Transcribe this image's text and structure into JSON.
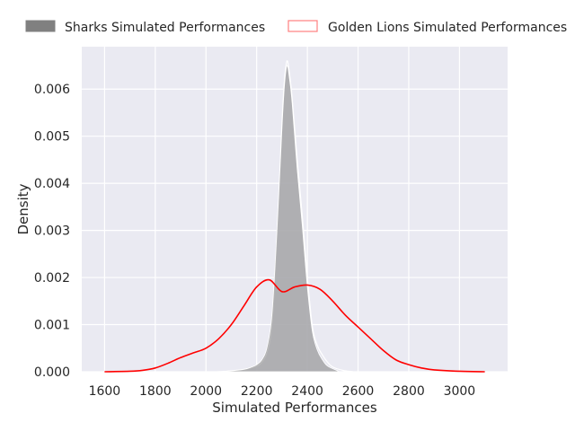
{
  "chart_data": {
    "type": "area",
    "xlabel": "Simulated Performances",
    "ylabel": "Density",
    "xlim": [
      1510,
      3190
    ],
    "ylim": [
      0,
      0.0069
    ],
    "x_ticks": [
      1600,
      1800,
      2000,
      2200,
      2400,
      2600,
      2800,
      3000
    ],
    "y_ticks": [
      0.0,
      0.001,
      0.002,
      0.003,
      0.004,
      0.005,
      0.006
    ],
    "y_tick_labels": [
      "0.000",
      "0.001",
      "0.002",
      "0.003",
      "0.004",
      "0.005",
      "0.006"
    ],
    "grid": true,
    "legend_placement": "top, outside plot, two columns",
    "series": [
      {
        "name": "Sharks Simulated Performances",
        "style": "filled",
        "fill_color": "#808080",
        "x": [
          2040,
          2100,
          2150,
          2180,
          2200,
          2220,
          2240,
          2260,
          2280,
          2300,
          2310,
          2320,
          2330,
          2340,
          2360,
          2380,
          2400,
          2420,
          2440,
          2460,
          2480,
          2520
        ],
        "values": [
          0.0,
          2e-05,
          5e-05,
          0.0001,
          0.00015,
          0.00025,
          0.0005,
          0.0012,
          0.003,
          0.0052,
          0.0061,
          0.0065,
          0.0062,
          0.0057,
          0.0043,
          0.0031,
          0.0018,
          0.00085,
          0.00045,
          0.00025,
          0.00012,
          2e-05
        ]
      },
      {
        "name": "Golden Lions Simulated Performances",
        "style": "line",
        "line_color": "#ff0000",
        "x": [
          1600,
          1700,
          1750,
          1800,
          1850,
          1900,
          1950,
          2000,
          2050,
          2100,
          2150,
          2200,
          2250,
          2300,
          2350,
          2400,
          2450,
          2500,
          2550,
          2600,
          2650,
          2700,
          2750,
          2800,
          2850,
          2900,
          3000,
          3100
        ],
        "values": [
          0.0,
          1e-05,
          3e-05,
          8e-05,
          0.00018,
          0.0003,
          0.0004,
          0.0005,
          0.0007,
          0.001,
          0.0014,
          0.0018,
          0.00195,
          0.0017,
          0.0018,
          0.00184,
          0.00175,
          0.0015,
          0.0012,
          0.00095,
          0.0007,
          0.00045,
          0.00025,
          0.00015,
          8e-05,
          4e-05,
          1e-05,
          0.0
        ]
      },
      {
        "name": "",
        "style": "filled-outline",
        "fill_color": "#e7e7ef",
        "line_color": "#ffffff",
        "x": [
          2060,
          2100,
          2150,
          2200,
          2220,
          2240,
          2260,
          2280,
          2300,
          2310,
          2320,
          2330,
          2340,
          2360,
          2380,
          2400,
          2420,
          2440,
          2460,
          2480,
          2500,
          2540,
          2580
        ],
        "values": [
          0.0,
          2e-05,
          5e-05,
          0.00012,
          0.0002,
          0.0004,
          0.001,
          0.0029,
          0.0053,
          0.0062,
          0.0066,
          0.0063,
          0.0058,
          0.0045,
          0.0033,
          0.002,
          0.00095,
          0.00055,
          0.00035,
          0.0002,
          0.0001,
          3e-05,
          0.0
        ]
      }
    ]
  }
}
